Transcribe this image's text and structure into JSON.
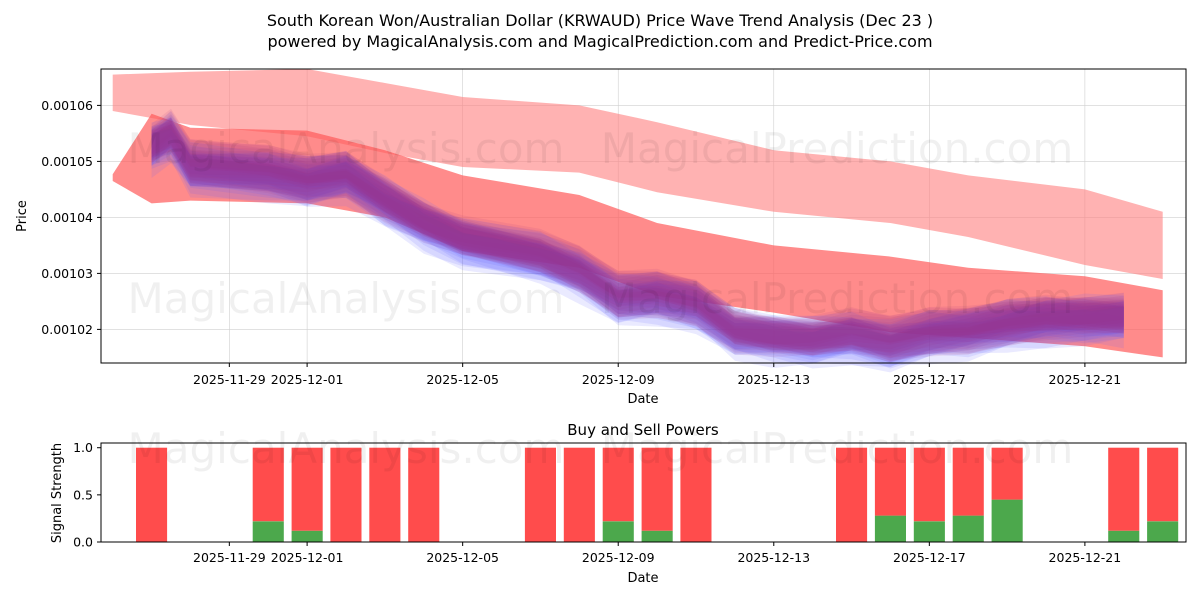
{
  "chart_data": [
    {
      "type": "area",
      "title_line1": "South Korean Won/Australian Dollar (KRWAUD) Price Wave Trend Analysis (Dec 23 )",
      "title_line2": "powered by MagicalAnalysis.com and MagicalPrediction.com and Predict-Price.com",
      "xlabel": "Date",
      "ylabel": "Price",
      "xlim": [
        -3.3,
        24.6
      ],
      "ylim": [
        0.001014,
        0.0010665
      ],
      "x_ticks": [
        {
          "x": 0,
          "label": "2025-11-29"
        },
        {
          "x": 2,
          "label": "2025-12-01"
        },
        {
          "x": 6,
          "label": "2025-12-05"
        },
        {
          "x": 10,
          "label": "2025-12-09"
        },
        {
          "x": 14,
          "label": "2025-12-13"
        },
        {
          "x": 18,
          "label": "2025-12-17"
        },
        {
          "x": 22,
          "label": "2025-12-21"
        }
      ],
      "y_ticks": [
        {
          "y": 0.00102,
          "label": "0.00102"
        },
        {
          "y": 0.00103,
          "label": "0.00103"
        },
        {
          "y": 0.00104,
          "label": "0.00104"
        },
        {
          "y": 0.00105,
          "label": "0.00105"
        },
        {
          "y": 0.00106,
          "label": "0.00106"
        }
      ],
      "bands": [
        {
          "name": "upper-forecast-band",
          "color": "#ff7f7f",
          "opacity": 0.6,
          "x": [
            -3,
            -1,
            2,
            4,
            6,
            9,
            11,
            14,
            17,
            19,
            22,
            24
          ],
          "upper": [
            0.0010655,
            0.001066,
            0.0010665,
            0.001064,
            0.0010615,
            0.00106,
            0.001057,
            0.001052,
            0.00105,
            0.0010475,
            0.001045,
            0.001041
          ],
          "lower": [
            0.001059,
            0.0010565,
            0.0010545,
            0.0010515,
            0.001049,
            0.001048,
            0.0010445,
            0.001041,
            0.001039,
            0.0010365,
            0.0010315,
            0.001029
          ]
        },
        {
          "name": "lower-forecast-band",
          "color": "#ff5a5a",
          "opacity": 0.7,
          "x": [
            -3,
            -2,
            -1,
            2,
            4,
            6,
            9,
            11,
            14,
            17,
            19,
            22,
            24
          ],
          "upper": [
            0.0010477,
            0.0010585,
            0.001056,
            0.0010555,
            0.001052,
            0.0010475,
            0.001044,
            0.001039,
            0.001035,
            0.001033,
            0.001031,
            0.0010295,
            0.001027
          ],
          "lower": [
            0.0010465,
            0.0010425,
            0.001043,
            0.0010425,
            0.00104,
            0.001034,
            0.001031,
            0.001026,
            0.001023,
            0.0010195,
            0.0010185,
            0.001017,
            0.001015
          ]
        }
      ],
      "waves": {
        "x": [
          -2,
          -1.5,
          -1,
          1,
          2,
          3,
          4,
          5,
          6,
          8,
          9,
          10,
          11,
          12,
          13,
          14,
          15,
          16,
          17,
          18,
          19,
          20,
          21,
          22,
          23
        ],
        "centers": [
          0.001053,
          0.001055,
          0.0010495,
          0.0010485,
          0.001047,
          0.001048,
          0.0010435,
          0.0010395,
          0.0010365,
          0.0010335,
          0.0010305,
          0.001026,
          0.0010265,
          0.001025,
          0.00102,
          0.001019,
          0.0010185,
          0.0010195,
          0.001018,
          0.0010195,
          0.00102,
          0.0010215,
          0.0010225,
          0.0010225,
          0.0010225
        ],
        "blue_count": 10,
        "purple_count": 16,
        "blue_color": "#5a5aff",
        "purple_color": "#a0308a"
      }
    },
    {
      "type": "bar",
      "title": "Buy and Sell Powers",
      "xlabel": "Date",
      "ylabel": "Signal Strength",
      "ylim": [
        0,
        1.05
      ],
      "y_ticks": [
        {
          "y": 0.0,
          "label": "0.0"
        },
        {
          "y": 0.5,
          "label": "0.5"
        },
        {
          "y": 1.0,
          "label": "1.0"
        }
      ],
      "buy_color": "#4ca84c",
      "sell_color": "#ff4c4c",
      "x": [
        -2,
        1,
        2,
        3,
        4,
        5,
        8,
        9,
        10,
        11,
        12,
        16,
        17,
        18,
        19,
        20,
        23,
        24
      ],
      "buy": [
        0.0,
        0.22,
        0.12,
        0.0,
        0.0,
        0.0,
        0.0,
        0.0,
        0.22,
        0.12,
        0.0,
        0.0,
        0.28,
        0.22,
        0.28,
        0.45,
        0.12,
        0.22
      ],
      "sell": [
        1.0,
        0.78,
        0.88,
        1.0,
        1.0,
        1.0,
        1.0,
        1.0,
        0.78,
        0.88,
        1.0,
        1.0,
        0.72,
        0.78,
        0.72,
        0.55,
        0.88,
        0.78
      ]
    }
  ],
  "watermarks": {
    "top_left": "MagicalAnalysis.com",
    "top_right": "MagicalPrediction.com",
    "mid_left": "MagicalAnalysis.com",
    "mid_right": "MagicalPrediction.com",
    "bottom_left": "MagicalAnalysis.com",
    "bottom_right": "MagicalPrediction.com"
  }
}
